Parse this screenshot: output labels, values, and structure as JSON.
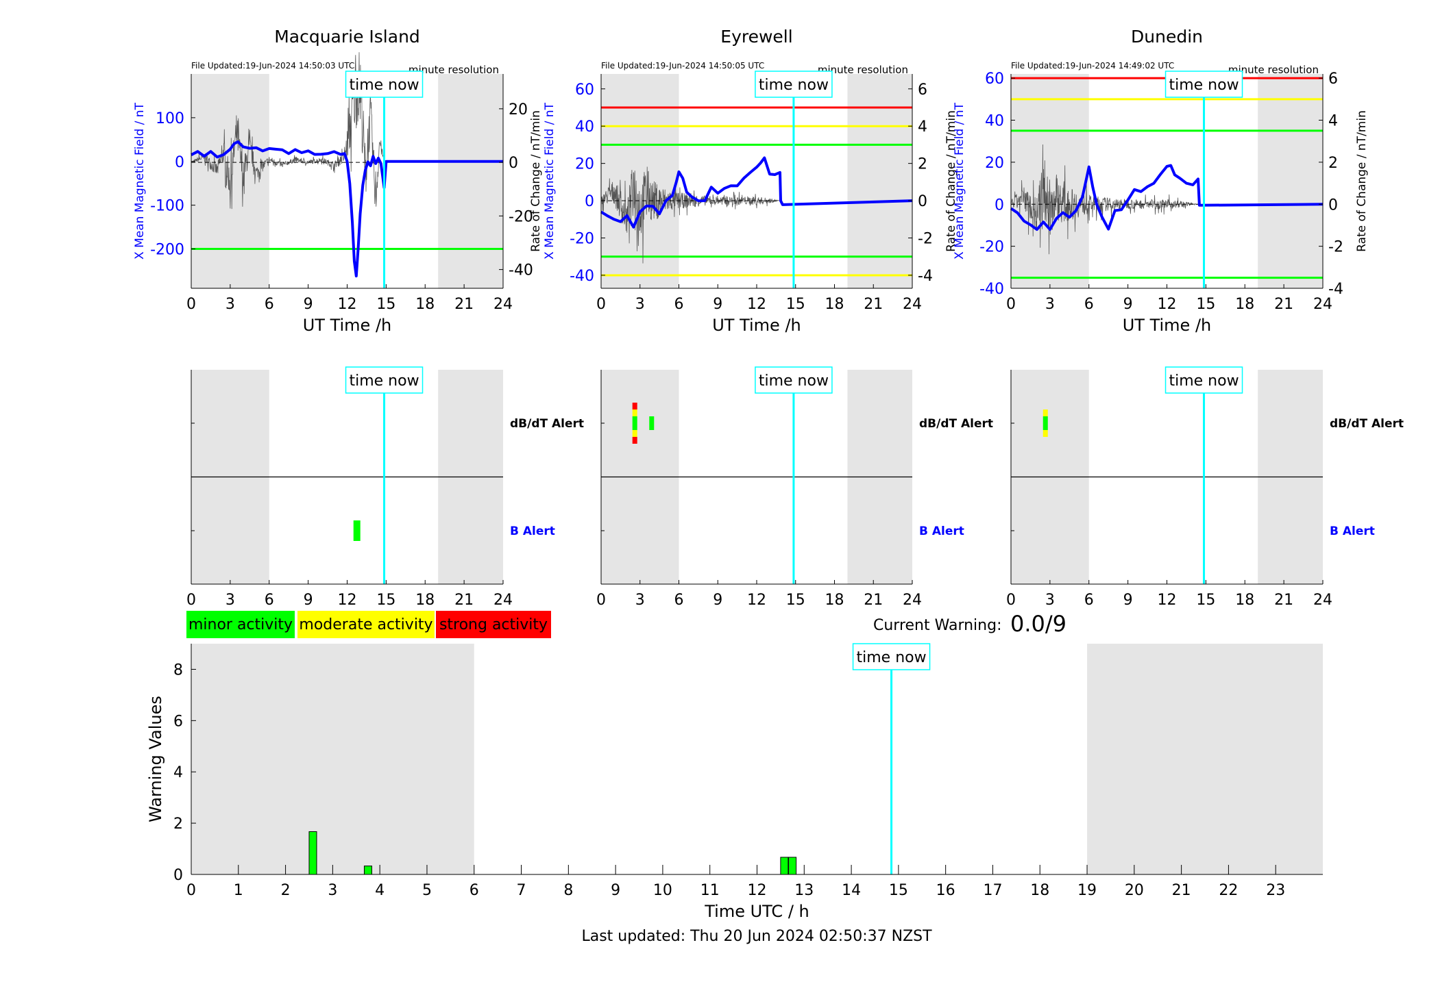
{
  "legend": {
    "minor": "minor activity",
    "moderate": "moderate activity",
    "strong": "strong activity",
    "minor_color": "#00ff00",
    "moderate_color": "#ffff00",
    "strong_color": "#ff0000"
  },
  "current_warning": {
    "label": "Current Warning:",
    "value": "0.0/9"
  },
  "last_updated": "Last updated: Thu 20 Jun 2024 02:50:37 NZST",
  "time_now_label": "time now",
  "colors": {
    "field": "#0000ff",
    "now_line": "#00ffff",
    "shade": "#e5e5e5",
    "grid_text": "#000000"
  },
  "chart_data": [
    {
      "type": "line",
      "title": "Macquarie Island",
      "file_updated": "File Updated:19-Jun-2024 14:50:03 UTC",
      "resolution": "minute resolution",
      "xlabel": "UT Time /h",
      "ylabel_left": "X Mean Magnetic Field / nT",
      "ylabel_right": "",
      "xlim": [
        0,
        24
      ],
      "xticks": [
        0,
        3,
        6,
        9,
        12,
        15,
        18,
        21,
        24
      ],
      "ylim_left": [
        -290,
        200
      ],
      "yticks_left": [
        -200,
        -100,
        0,
        100
      ],
      "ylim_right": [
        -47,
        33
      ],
      "yticks_right": [
        -40,
        -20,
        0,
        20
      ],
      "night_shading": [
        [
          0,
          6
        ],
        [
          19,
          24
        ]
      ],
      "time_now": 14.85,
      "thresholds": [
        {
          "value": -200,
          "color": "#00ff00"
        }
      ],
      "series_field": {
        "x": [
          0,
          0.5,
          1,
          1.5,
          2,
          2.5,
          3,
          3.3,
          3.6,
          4,
          4.5,
          5,
          5.5,
          6,
          6.5,
          7,
          7.5,
          8,
          8.5,
          9,
          9.5,
          10,
          10.5,
          11,
          11.5,
          11.8,
          12,
          12.2,
          12.4,
          12.55,
          12.7,
          12.85,
          13,
          13.2,
          13.4,
          13.6,
          13.8,
          14,
          14.2,
          14.4,
          14.6,
          14.85,
          15,
          16,
          20,
          24
        ],
        "y": [
          15,
          18,
          12,
          20,
          10,
          18,
          28,
          35,
          45,
          32,
          30,
          22,
          24,
          38,
          28,
          20,
          18,
          24,
          20,
          22,
          16,
          20,
          18,
          24,
          16,
          12,
          0,
          -60,
          -140,
          -230,
          -262,
          -200,
          -120,
          -60,
          -20,
          5,
          -10,
          10,
          -5,
          10,
          -5,
          -60,
          0,
          0,
          0,
          0
        ]
      },
      "series_rate": {
        "x": [
          0,
          1,
          2,
          2.5,
          3,
          3.5,
          4,
          4.5,
          5,
          6,
          7,
          8,
          9,
          10,
          11,
          11.8,
          12.2,
          12.6,
          13,
          13.4,
          13.8,
          14.2,
          14.5,
          14.85,
          24
        ],
        "y": [
          0,
          2,
          -3,
          4,
          -8,
          12,
          -6,
          6,
          -4,
          1,
          -1,
          1,
          0,
          1,
          -1,
          2,
          12,
          25,
          30,
          -5,
          18,
          -15,
          8,
          0,
          0
        ],
        "amplitude": [
          0,
          4,
          6,
          10,
          14,
          16,
          12,
          10,
          6,
          3,
          2,
          2,
          2,
          2,
          3,
          5,
          20,
          30,
          30,
          25,
          20,
          15,
          8,
          0,
          0
        ]
      }
    },
    {
      "type": "line",
      "title": "Eyrewell",
      "file_updated": "File Updated:19-Jun-2024 14:50:05 UTC",
      "resolution": "minute resolution",
      "xlabel": "UT Time /h",
      "ylabel_left": "X Mean Magnetic Field / nT",
      "ylabel_right": "Rate of Change / nT/min",
      "ylabel_right_outer": "Rate of Change / nT/min",
      "xlim": [
        0,
        24
      ],
      "xticks": [
        0,
        3,
        6,
        9,
        12,
        15,
        18,
        21,
        24
      ],
      "ylim_left": [
        -47,
        68
      ],
      "yticks_left": [
        -40,
        -20,
        0,
        20,
        40,
        60
      ],
      "ylim_right": [
        -4.7,
        6.8
      ],
      "yticks_right": [
        -4,
        -2,
        0,
        2,
        4,
        6
      ],
      "night_shading": [
        [
          0,
          6
        ],
        [
          19,
          24
        ]
      ],
      "time_now": 14.85,
      "thresholds": [
        {
          "value": 50,
          "color": "#ff0000"
        },
        {
          "value": 40,
          "color": "#ffff00"
        },
        {
          "value": 30,
          "color": "#00ff00"
        },
        {
          "value": -30,
          "color": "#00ff00"
        },
        {
          "value": -40,
          "color": "#ffff00"
        }
      ],
      "series_field": {
        "x": [
          0,
          0.5,
          1,
          1.5,
          2,
          2.5,
          3,
          3.5,
          4,
          4.5,
          5,
          5.5,
          5.8,
          6,
          6.3,
          6.6,
          7,
          7.5,
          8,
          8.5,
          9,
          9.5,
          10,
          10.5,
          11,
          11.5,
          12,
          12.3,
          12.6,
          13,
          13.4,
          13.8,
          13.85,
          14,
          24
        ],
        "y": [
          -6,
          -8,
          -10,
          -12,
          -8,
          -14,
          -6,
          -5,
          -3,
          -8,
          0,
          2,
          10,
          17,
          12,
          3,
          2,
          -2,
          0,
          5,
          4,
          6,
          8,
          10,
          12,
          15,
          18,
          22,
          23,
          16,
          14,
          13,
          0,
          0,
          0
        ]
      },
      "series_rate": {
        "x": [
          0,
          1,
          2,
          2.5,
          3,
          3.5,
          4,
          5,
          6,
          7,
          8,
          9,
          10,
          11,
          12,
          13,
          13.8,
          24
        ],
        "y": [
          0,
          0.5,
          -1,
          1,
          -0.5,
          0.5,
          0,
          0,
          0,
          0,
          0,
          0,
          0,
          0,
          0,
          0,
          0,
          0
        ],
        "amplitude": [
          0.5,
          1.5,
          2,
          3,
          4,
          3,
          2.5,
          1.5,
          1,
          0.8,
          0.6,
          0.5,
          0.5,
          0.5,
          0.5,
          0.3,
          0,
          0
        ]
      }
    },
    {
      "type": "line",
      "title": "Dunedin",
      "file_updated": "File Updated:19-Jun-2024 14:49:02 UTC",
      "resolution": "minute resolution",
      "xlabel": "UT Time /h",
      "ylabel_left": "X Mean Magnetic Field / nT",
      "ylabel_right": "Rate of Change / nT/min",
      "xlim": [
        0,
        24
      ],
      "xticks": [
        0,
        3,
        6,
        9,
        12,
        15,
        18,
        21,
        24
      ],
      "ylim_left": [
        -40,
        62
      ],
      "yticks_left": [
        -40,
        -20,
        0,
        20,
        40,
        60
      ],
      "ylim_right": [
        -4.0,
        6.2
      ],
      "yticks_right": [
        -4,
        -2,
        0,
        2,
        4,
        6
      ],
      "night_shading": [
        [
          0,
          6
        ],
        [
          19,
          24
        ]
      ],
      "time_now": 14.85,
      "thresholds": [
        {
          "value": 60,
          "color": "#ff0000"
        },
        {
          "value": 50,
          "color": "#ffff00"
        },
        {
          "value": 35,
          "color": "#00ff00"
        },
        {
          "value": -35,
          "color": "#00ff00"
        }
      ],
      "series_field": {
        "x": [
          0,
          0.5,
          1,
          1.5,
          2,
          2.5,
          3,
          3.5,
          4,
          4.5,
          5,
          5.5,
          5.8,
          6,
          6.3,
          6.6,
          7,
          7.5,
          8,
          8.5,
          9,
          9.5,
          10,
          10.5,
          11,
          11.5,
          12,
          12.3,
          12.6,
          13,
          13.5,
          14,
          14.4,
          14.5,
          24
        ],
        "y": [
          -2,
          -5,
          -8,
          -10,
          -12,
          -8,
          -12,
          -5,
          -4,
          -6,
          -3,
          2,
          12,
          17,
          8,
          0,
          -6,
          -10,
          -3,
          -2,
          2,
          5,
          6,
          8,
          10,
          14,
          18,
          20,
          14,
          12,
          10,
          10,
          12,
          0,
          0
        ]
      },
      "series_rate": {
        "x": [
          0,
          1,
          2,
          2.5,
          3,
          3.5,
          4,
          5,
          6,
          7,
          8,
          9,
          10,
          11,
          12,
          13,
          14.4,
          24
        ],
        "y": [
          0,
          0.3,
          -0.5,
          0.8,
          -0.3,
          0.4,
          0,
          0,
          0,
          0,
          0,
          0,
          0,
          0,
          0,
          0,
          0,
          0
        ],
        "amplitude": [
          0.5,
          1.2,
          2,
          2.8,
          3.2,
          2.5,
          2,
          1.5,
          1,
          0.8,
          0.6,
          0.5,
          0.5,
          0.5,
          0.5,
          0.4,
          0,
          0
        ]
      }
    },
    {
      "type": "bar",
      "title": "",
      "row_labels": [
        "dB/dT Alert",
        "B Alert"
      ],
      "row_label_colors": [
        "#000000",
        "#0000ff"
      ],
      "xlim": [
        0,
        24
      ],
      "xticks": [
        0,
        3,
        6,
        9,
        12,
        15,
        18,
        21,
        24
      ],
      "night_shading": [
        [
          0,
          6
        ],
        [
          19,
          24
        ]
      ],
      "time_now": 14.85,
      "alerts": [
        {
          "row": "B Alert",
          "t": 12.75,
          "level": "minor"
        }
      ]
    },
    {
      "type": "bar",
      "title": "",
      "row_labels": [
        "dB/dT Alert",
        "B Alert"
      ],
      "row_label_colors": [
        "#000000",
        "#0000ff"
      ],
      "xlim": [
        0,
        24
      ],
      "xticks": [
        0,
        3,
        6,
        9,
        12,
        15,
        18,
        21,
        24
      ],
      "night_shading": [
        [
          0,
          6
        ],
        [
          19,
          24
        ]
      ],
      "time_now": 14.85,
      "alerts": [
        {
          "row": "dB/dT Alert",
          "t": 2.6,
          "levels": [
            "strong",
            "moderate",
            "minor",
            "minor",
            "moderate",
            "strong"
          ]
        },
        {
          "row": "dB/dT Alert",
          "t": 3.9,
          "levels": [
            "minor",
            "minor"
          ]
        }
      ]
    },
    {
      "type": "bar",
      "title": "",
      "row_labels": [
        "dB/dT Alert",
        "B Alert"
      ],
      "row_label_colors": [
        "#000000",
        "#0000ff"
      ],
      "xlim": [
        0,
        24
      ],
      "xticks": [
        0,
        3,
        6,
        9,
        12,
        15,
        18,
        21,
        24
      ],
      "night_shading": [
        [
          0,
          6
        ],
        [
          19,
          24
        ]
      ],
      "time_now": 14.85,
      "alerts": [
        {
          "row": "dB/dT Alert",
          "t": 2.65,
          "levels": [
            "moderate",
            "minor",
            "minor",
            "moderate"
          ]
        }
      ]
    },
    {
      "type": "bar",
      "title": "",
      "xlabel": "Time UTC / h",
      "ylabel": "Warning Values",
      "xlim": [
        0,
        24
      ],
      "xticks": [
        0,
        1,
        2,
        3,
        4,
        5,
        6,
        7,
        8,
        9,
        10,
        11,
        12,
        13,
        14,
        15,
        16,
        17,
        18,
        19,
        20,
        21,
        22,
        23
      ],
      "ylim": [
        0,
        9
      ],
      "yticks": [
        0,
        2,
        4,
        6,
        8
      ],
      "night_shading": [
        [
          0,
          6
        ],
        [
          19,
          24
        ]
      ],
      "time_now": 14.85,
      "bars": [
        {
          "x": 2.58,
          "value": 1.67
        },
        {
          "x": 3.75,
          "value": 0.33
        },
        {
          "x": 12.58,
          "value": 0.67
        },
        {
          "x": 12.75,
          "value": 0.67
        }
      ]
    }
  ]
}
